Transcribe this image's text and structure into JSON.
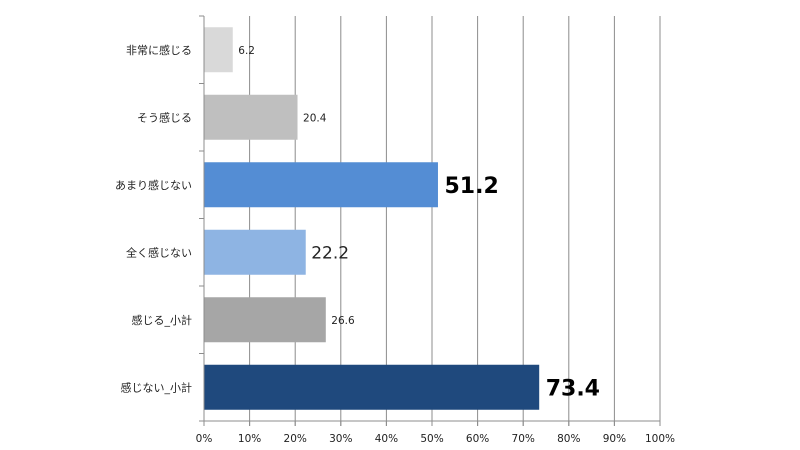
{
  "chart_data": {
    "type": "bar",
    "orientation": "horizontal",
    "categories": [
      "非常に感じる",
      "そう感じる",
      "あまり感じない",
      "全く感じない",
      "感じる_小計",
      "感じない_小計"
    ],
    "values": [
      6.2,
      20.4,
      51.2,
      22.2,
      26.6,
      73.4
    ],
    "value_labels": [
      "6.2",
      "20.4",
      "51.2",
      "22.2",
      "26.6",
      "73.4"
    ],
    "label_emphasis": [
      "small",
      "small",
      "big",
      "medium",
      "small",
      "big"
    ],
    "bar_colors": [
      "#d9d9d9",
      "#bfbfbf",
      "#548dd4",
      "#8eb4e3",
      "#a6a6a6",
      "#1f497d"
    ],
    "x_ticks": [
      "0%",
      "10%",
      "20%",
      "30%",
      "40%",
      "50%",
      "60%",
      "70%",
      "80%",
      "90%",
      "100%"
    ],
    "xlim": [
      0,
      100
    ],
    "grid": "vertical",
    "legend": "none",
    "title": "",
    "xlabel": "",
    "ylabel": ""
  }
}
